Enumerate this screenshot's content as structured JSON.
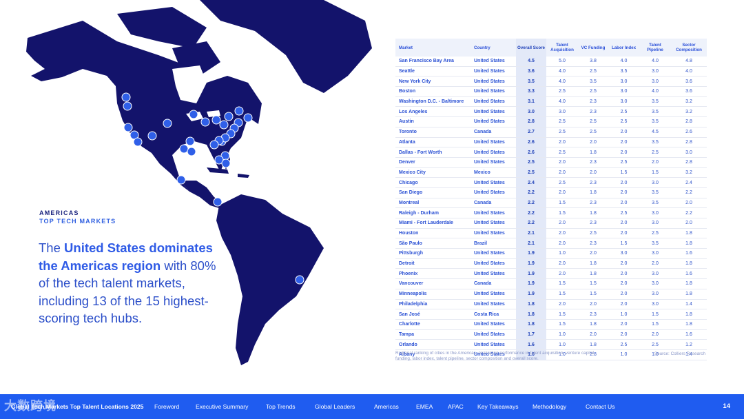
{
  "section": {
    "label": "AMERICAS",
    "sublabel": "TOP TECH MARKETS"
  },
  "headline": {
    "p1": "The ",
    "b1": "United States dominates the Americas region",
    "p2": " with 80% of the tech talent markets, including 13 of the 15 highest-scoring tech hubs."
  },
  "table": {
    "headers": {
      "market": "Market",
      "country": "Country",
      "overall": "Overall Score",
      "talent": "Talent Acquisition",
      "vc": "VC Funding",
      "labor": "Labor Index",
      "pipeline": "Talent Pipeline",
      "sector": "Sector Composition"
    },
    "rows": [
      {
        "market": "San Francisco Bay Area",
        "country": "United States",
        "overall": "4.5",
        "talent": "5.0",
        "vc": "3.8",
        "labor": "4.0",
        "pipeline": "4.0",
        "sector": "4.8"
      },
      {
        "market": "Seattle",
        "country": "United States",
        "overall": "3.6",
        "talent": "4.0",
        "vc": "2.5",
        "labor": "3.5",
        "pipeline": "3.0",
        "sector": "4.0"
      },
      {
        "market": "New York City",
        "country": "United States",
        "overall": "3.5",
        "talent": "4.0",
        "vc": "3.5",
        "labor": "3.0",
        "pipeline": "3.0",
        "sector": "3.6"
      },
      {
        "market": "Boston",
        "country": "United States",
        "overall": "3.3",
        "talent": "2.5",
        "vc": "2.5",
        "labor": "3.0",
        "pipeline": "4.0",
        "sector": "3.6"
      },
      {
        "market": "Washington D.C. - Baltimore",
        "country": "United States",
        "overall": "3.1",
        "talent": "4.0",
        "vc": "2.3",
        "labor": "3.0",
        "pipeline": "3.5",
        "sector": "3.2"
      },
      {
        "market": "Los Angeles",
        "country": "United States",
        "overall": "3.0",
        "talent": "3.0",
        "vc": "2.3",
        "labor": "2.5",
        "pipeline": "3.5",
        "sector": "3.2"
      },
      {
        "market": "Austin",
        "country": "United States",
        "overall": "2.8",
        "talent": "2.5",
        "vc": "2.5",
        "labor": "2.5",
        "pipeline": "3.5",
        "sector": "2.8"
      },
      {
        "market": "Toronto",
        "country": "Canada",
        "overall": "2.7",
        "talent": "2.5",
        "vc": "2.5",
        "labor": "2.0",
        "pipeline": "4.5",
        "sector": "2.6"
      },
      {
        "market": "Atlanta",
        "country": "United States",
        "overall": "2.6",
        "talent": "2.0",
        "vc": "2.0",
        "labor": "2.0",
        "pipeline": "3.5",
        "sector": "2.8"
      },
      {
        "market": "Dallas - Fort Worth",
        "country": "United States",
        "overall": "2.6",
        "talent": "2.5",
        "vc": "1.8",
        "labor": "2.0",
        "pipeline": "2.5",
        "sector": "3.0"
      },
      {
        "market": "Denver",
        "country": "United States",
        "overall": "2.5",
        "talent": "2.0",
        "vc": "2.3",
        "labor": "2.5",
        "pipeline": "2.0",
        "sector": "2.8"
      },
      {
        "market": "Mexico City",
        "country": "Mexico",
        "overall": "2.5",
        "talent": "2.0",
        "vc": "2.0",
        "labor": "1.5",
        "pipeline": "1.5",
        "sector": "3.2"
      },
      {
        "market": "Chicago",
        "country": "United States",
        "overall": "2.4",
        "talent": "2.5",
        "vc": "2.3",
        "labor": "2.0",
        "pipeline": "3.0",
        "sector": "2.4"
      },
      {
        "market": "San Diego",
        "country": "United States",
        "overall": "2.2",
        "talent": "2.0",
        "vc": "1.8",
        "labor": "2.0",
        "pipeline": "3.5",
        "sector": "2.2"
      },
      {
        "market": "Montreal",
        "country": "Canada",
        "overall": "2.2",
        "talent": "1.5",
        "vc": "2.3",
        "labor": "2.0",
        "pipeline": "3.5",
        "sector": "2.0"
      },
      {
        "market": "Raleigh - Durham",
        "country": "United States",
        "overall": "2.2",
        "talent": "1.5",
        "vc": "1.8",
        "labor": "2.5",
        "pipeline": "3.0",
        "sector": "2.2"
      },
      {
        "market": "Miami - Fort Lauderdale",
        "country": "United States",
        "overall": "2.2",
        "talent": "2.0",
        "vc": "2.3",
        "labor": "2.0",
        "pipeline": "3.0",
        "sector": "2.0"
      },
      {
        "market": "Houston",
        "country": "United States",
        "overall": "2.1",
        "talent": "2.0",
        "vc": "2.5",
        "labor": "2.0",
        "pipeline": "2.5",
        "sector": "1.8"
      },
      {
        "market": "São Paulo",
        "country": "Brazil",
        "overall": "2.1",
        "talent": "2.0",
        "vc": "2.3",
        "labor": "1.5",
        "pipeline": "3.5",
        "sector": "1.8"
      },
      {
        "market": "Pittsburgh",
        "country": "United States",
        "overall": "1.9",
        "talent": "1.0",
        "vc": "2.0",
        "labor": "3.0",
        "pipeline": "3.0",
        "sector": "1.6"
      },
      {
        "market": "Detroit",
        "country": "United States",
        "overall": "1.9",
        "talent": "2.0",
        "vc": "1.8",
        "labor": "2.0",
        "pipeline": "2.0",
        "sector": "1.8"
      },
      {
        "market": "Phoenix",
        "country": "United States",
        "overall": "1.9",
        "talent": "2.0",
        "vc": "1.8",
        "labor": "2.0",
        "pipeline": "3.0",
        "sector": "1.6"
      },
      {
        "market": "Vancouver",
        "country": "Canada",
        "overall": "1.9",
        "talent": "1.5",
        "vc": "1.5",
        "labor": "2.0",
        "pipeline": "3.0",
        "sector": "1.8"
      },
      {
        "market": "Minneapolis",
        "country": "United States",
        "overall": "1.9",
        "talent": "1.5",
        "vc": "1.5",
        "labor": "2.0",
        "pipeline": "3.0",
        "sector": "1.8"
      },
      {
        "market": "Philadelphia",
        "country": "United States",
        "overall": "1.8",
        "talent": "2.0",
        "vc": "2.0",
        "labor": "2.0",
        "pipeline": "3.0",
        "sector": "1.4"
      },
      {
        "market": "San José",
        "country": "Costa Rica",
        "overall": "1.8",
        "talent": "1.5",
        "vc": "2.3",
        "labor": "1.0",
        "pipeline": "1.5",
        "sector": "1.8"
      },
      {
        "market": "Charlotte",
        "country": "United States",
        "overall": "1.8",
        "talent": "1.5",
        "vc": "1.8",
        "labor": "2.0",
        "pipeline": "1.5",
        "sector": "1.8"
      },
      {
        "market": "Tampa",
        "country": "United States",
        "overall": "1.7",
        "talent": "1.0",
        "vc": "2.0",
        "labor": "2.0",
        "pipeline": "2.0",
        "sector": "1.6"
      },
      {
        "market": "Orlando",
        "country": "United States",
        "overall": "1.6",
        "talent": "1.0",
        "vc": "1.8",
        "labor": "2.5",
        "pipeline": "2.5",
        "sector": "1.2"
      },
      {
        "market": "Albany",
        "country": "United States",
        "overall": "1.6",
        "talent": "1.0",
        "vc": "2.8",
        "labor": "1.0",
        "pipeline": "1.0",
        "sector": "1.4"
      }
    ],
    "note": "Regional ranking of cities in the Americas, evaluating performance in talent acquisition, venture capital funding, labor index, talent pipeline, sector composition and overall score.",
    "source": "Source: Colliers Research"
  },
  "footer": {
    "title": "Global Tech Markets Top Talent Locations 2025",
    "nav": [
      "Foreword",
      "Executive Summary",
      "Top Trends",
      "Global Leaders",
      "Americas",
      "EMEA",
      "APAC",
      "Key Takeaways",
      "Methodology",
      "Contact Us"
    ],
    "page": "14"
  },
  "watermark": "大数跨境",
  "colors": {
    "map": "#13136b",
    "marker": "#2f5fe8",
    "accent": "#2f5be6",
    "footer": "#1f5cf0"
  }
}
